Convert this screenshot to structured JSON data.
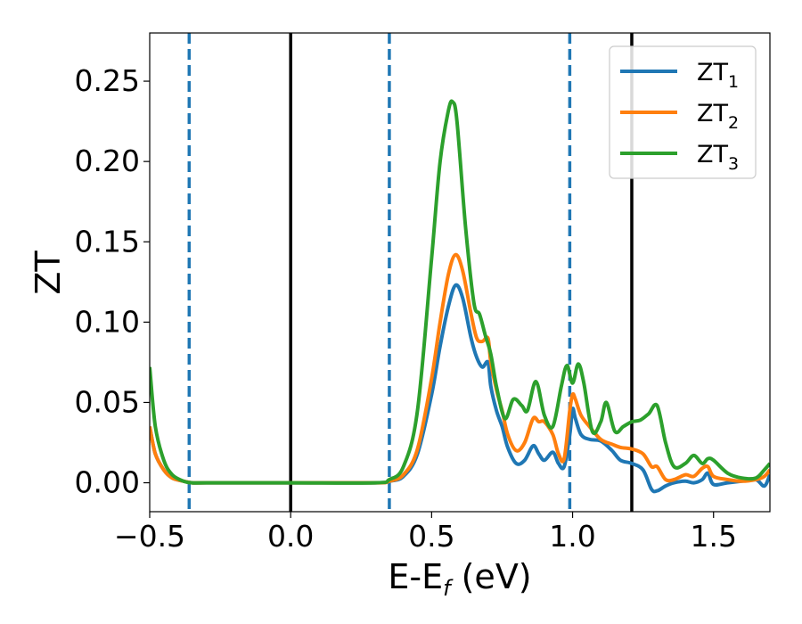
{
  "chart_data": {
    "type": "line",
    "xlabel": "E-E",
    "xlabel_sub": "f",
    "xlabel_unit": " (eV)",
    "ylabel": "ZT",
    "xlim": [
      -0.5,
      1.7
    ],
    "ylim": [
      -0.018,
      0.28
    ],
    "xticks": [
      -0.5,
      0.0,
      0.5,
      1.0,
      1.5
    ],
    "xtick_labels": [
      "−0.5",
      "0.0",
      "0.5",
      "1.0",
      "1.5"
    ],
    "yticks": [
      0.0,
      0.05,
      0.1,
      0.15,
      0.2,
      0.25
    ],
    "ytick_labels": [
      "0.00",
      "0.05",
      "0.10",
      "0.15",
      "0.20",
      "0.25"
    ],
    "grid": false,
    "legend_position": "top-right",
    "vertical_lines": [
      {
        "x": -0.36,
        "style": "dashed",
        "color": "#1f77b4"
      },
      {
        "x": 0.0,
        "style": "solid",
        "color": "#000000"
      },
      {
        "x": 0.35,
        "style": "dashed",
        "color": "#1f77b4"
      },
      {
        "x": 0.99,
        "style": "dashed",
        "color": "#1f77b4"
      },
      {
        "x": 1.21,
        "style": "solid",
        "color": "#000000"
      }
    ],
    "series": [
      {
        "name": "ZT",
        "sub": "1",
        "color": "#1f77b4",
        "x": [
          -0.5,
          -0.48,
          -0.45,
          -0.42,
          -0.38,
          -0.35,
          -0.3,
          0.0,
          0.3,
          0.35,
          0.4,
          0.45,
          0.5,
          0.53,
          0.56,
          0.585,
          0.61,
          0.64,
          0.66,
          0.68,
          0.7,
          0.71,
          0.73,
          0.75,
          0.77,
          0.8,
          0.83,
          0.86,
          0.88,
          0.9,
          0.93,
          0.95,
          0.97,
          0.99,
          1.0,
          1.01,
          1.03,
          1.06,
          1.1,
          1.14,
          1.17,
          1.21,
          1.25,
          1.28,
          1.3,
          1.33,
          1.36,
          1.4,
          1.43,
          1.46,
          1.48,
          1.5,
          1.55,
          1.6,
          1.65,
          1.68,
          1.7
        ],
        "y": [
          0.035,
          0.018,
          0.008,
          0.003,
          0.001,
          0.0,
          0.0,
          0.0,
          0.0,
          0.001,
          0.004,
          0.018,
          0.055,
          0.085,
          0.11,
          0.123,
          0.115,
          0.09,
          0.078,
          0.072,
          0.075,
          0.06,
          0.045,
          0.035,
          0.022,
          0.012,
          0.014,
          0.023,
          0.018,
          0.014,
          0.019,
          0.012,
          0.01,
          0.03,
          0.046,
          0.04,
          0.03,
          0.027,
          0.026,
          0.02,
          0.014,
          0.012,
          0.008,
          -0.004,
          -0.005,
          -0.002,
          0.0,
          0.001,
          0.0,
          0.002,
          0.006,
          -0.001,
          0.0,
          0.001,
          0.002,
          -0.002,
          0.005
        ]
      },
      {
        "name": "ZT",
        "sub": "2",
        "color": "#ff7f0e",
        "x": [
          -0.5,
          -0.48,
          -0.45,
          -0.42,
          -0.38,
          -0.35,
          -0.3,
          0.0,
          0.3,
          0.35,
          0.4,
          0.45,
          0.5,
          0.53,
          0.56,
          0.585,
          0.61,
          0.64,
          0.66,
          0.68,
          0.7,
          0.71,
          0.73,
          0.75,
          0.77,
          0.8,
          0.83,
          0.86,
          0.88,
          0.9,
          0.93,
          0.95,
          0.97,
          0.99,
          1.0,
          1.01,
          1.03,
          1.06,
          1.1,
          1.14,
          1.17,
          1.21,
          1.25,
          1.28,
          1.3,
          1.33,
          1.36,
          1.4,
          1.43,
          1.46,
          1.48,
          1.5,
          1.55,
          1.6,
          1.65,
          1.68,
          1.7
        ],
        "y": [
          0.035,
          0.018,
          0.008,
          0.003,
          0.001,
          0.0,
          0.0,
          0.0,
          0.0,
          0.001,
          0.005,
          0.021,
          0.065,
          0.1,
          0.13,
          0.142,
          0.132,
          0.105,
          0.09,
          0.088,
          0.09,
          0.075,
          0.058,
          0.045,
          0.03,
          0.02,
          0.025,
          0.04,
          0.038,
          0.038,
          0.03,
          0.018,
          0.015,
          0.045,
          0.055,
          0.052,
          0.042,
          0.035,
          0.027,
          0.024,
          0.022,
          0.021,
          0.018,
          0.01,
          0.01,
          0.002,
          0.002,
          0.005,
          0.004,
          0.009,
          0.01,
          0.004,
          0.002,
          0.001,
          0.002,
          0.004,
          0.008
        ]
      },
      {
        "name": "ZT",
        "sub": "3",
        "color": "#2ca02c",
        "x": [
          -0.5,
          -0.48,
          -0.45,
          -0.42,
          -0.38,
          -0.35,
          -0.3,
          0.0,
          0.3,
          0.35,
          0.4,
          0.45,
          0.5,
          0.53,
          0.56,
          0.575,
          0.59,
          0.62,
          0.65,
          0.67,
          0.69,
          0.71,
          0.73,
          0.76,
          0.79,
          0.82,
          0.84,
          0.87,
          0.9,
          0.93,
          0.96,
          0.98,
          1.0,
          1.02,
          1.04,
          1.07,
          1.1,
          1.12,
          1.15,
          1.18,
          1.21,
          1.24,
          1.27,
          1.3,
          1.33,
          1.36,
          1.4,
          1.43,
          1.46,
          1.48,
          1.5,
          1.55,
          1.6,
          1.65,
          1.68,
          1.7
        ],
        "y": [
          0.072,
          0.035,
          0.014,
          0.005,
          0.001,
          0.0,
          0.0,
          0.0,
          0.0,
          0.002,
          0.01,
          0.045,
          0.14,
          0.2,
          0.232,
          0.237,
          0.225,
          0.16,
          0.112,
          0.105,
          0.092,
          0.08,
          0.06,
          0.04,
          0.052,
          0.048,
          0.045,
          0.063,
          0.042,
          0.035,
          0.06,
          0.073,
          0.062,
          0.074,
          0.062,
          0.032,
          0.038,
          0.05,
          0.032,
          0.035,
          0.038,
          0.039,
          0.043,
          0.048,
          0.025,
          0.01,
          0.012,
          0.017,
          0.012,
          0.015,
          0.014,
          0.006,
          0.003,
          0.003,
          0.008,
          0.012
        ]
      }
    ]
  }
}
